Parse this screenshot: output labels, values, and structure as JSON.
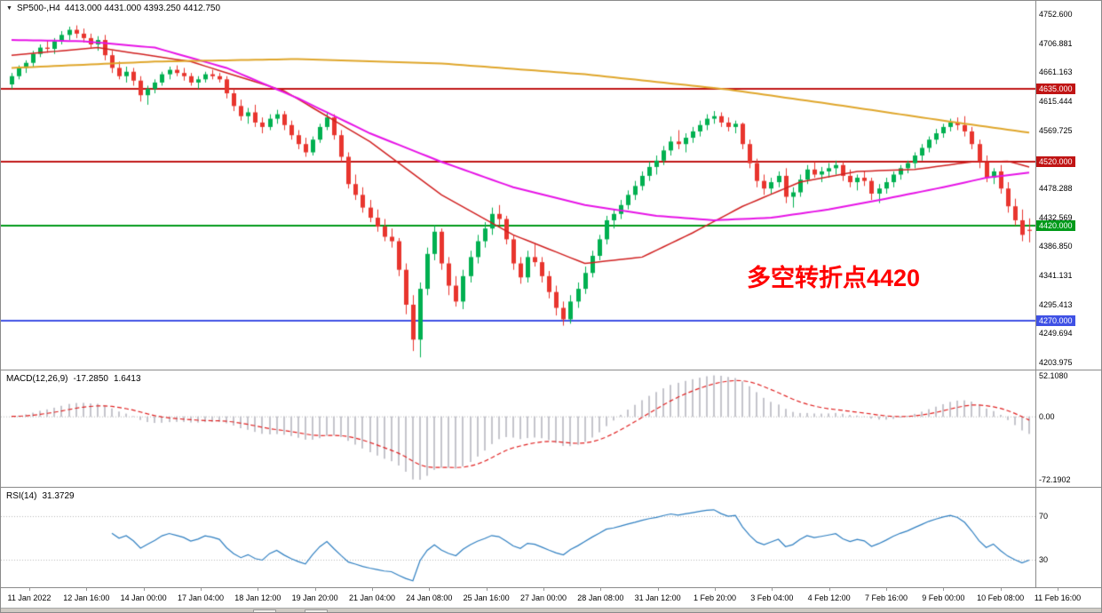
{
  "window": {
    "expander_icon": "▼",
    "symbol_period": "SP500-,H4",
    "ohlc_values": "4413.000 4431.000 4393.250 4412.750"
  },
  "chart_data": {
    "type": "candlestick",
    "symbol": "SP500-",
    "timeframe": "H4",
    "main_panel": {
      "ylim": [
        4192.8,
        4773.6
      ],
      "yticks": [
        "4752.600",
        "4706.881",
        "4661.163",
        "4615.444",
        "4569.725",
        "4478.288",
        "4432.569",
        "4386.850",
        "4341.131",
        "4295.413",
        "4249.694",
        "4203.975"
      ],
      "up_color": "#00b050",
      "down_color": "#e8352e",
      "hlines": [
        {
          "value": 4635.0,
          "label": "4635.000",
          "color": "#c01414"
        },
        {
          "value": 4520.0,
          "label": "4520.000",
          "color": "#c01414"
        },
        {
          "value": 4420.0,
          "label": "4420.000",
          "color": "#009a1a"
        },
        {
          "value": 4270.0,
          "label": "4270.000",
          "color": "#3f51e5"
        }
      ],
      "annotation": {
        "text": "多空转折点4420",
        "color": "#ff0000",
        "x": 840,
        "y": 290,
        "font_size": 27
      },
      "ma_lines": [
        {
          "name": "ma-fast-red",
          "color": "#d02020",
          "width": 1.5,
          "points": [
            [
              0,
              4688
            ],
            [
              12,
              4700
            ],
            [
              25,
              4678
            ],
            [
              38,
              4632
            ],
            [
              50,
              4552
            ],
            [
              60,
              4468
            ],
            [
              70,
              4405
            ],
            [
              80,
              4360
            ],
            [
              88,
              4370
            ],
            [
              95,
              4408
            ],
            [
              102,
              4450
            ],
            [
              110,
              4488
            ],
            [
              118,
              4505
            ],
            [
              126,
              4508
            ],
            [
              134,
              4520
            ],
            [
              139,
              4521
            ],
            [
              142,
              4512
            ]
          ]
        },
        {
          "name": "ma-mid-magenta",
          "color": "#e613e6",
          "width": 2,
          "points": [
            [
              0,
              4712
            ],
            [
              10,
              4710
            ],
            [
              20,
              4700
            ],
            [
              30,
              4668
            ],
            [
              40,
              4620
            ],
            [
              50,
              4565
            ],
            [
              60,
              4520
            ],
            [
              70,
              4480
            ],
            [
              80,
              4452
            ],
            [
              90,
              4435
            ],
            [
              98,
              4428
            ],
            [
              106,
              4432
            ],
            [
              114,
              4445
            ],
            [
              122,
              4462
            ],
            [
              130,
              4480
            ],
            [
              136,
              4495
            ],
            [
              142,
              4503
            ]
          ]
        },
        {
          "name": "ma-slow-orange",
          "color": "#dfa62b",
          "width": 2,
          "points": [
            [
              0,
              4668
            ],
            [
              20,
              4678
            ],
            [
              40,
              4682
            ],
            [
              60,
              4675
            ],
            [
              80,
              4658
            ],
            [
              100,
              4634
            ],
            [
              115,
              4610
            ],
            [
              130,
              4585
            ],
            [
              142,
              4566
            ]
          ]
        }
      ],
      "candles": [
        [
          4642,
          4660,
          4635,
          4655
        ],
        [
          4655,
          4672,
          4650,
          4668
        ],
        [
          4668,
          4680,
          4660,
          4676
        ],
        [
          4676,
          4695,
          4670,
          4690
        ],
        [
          4690,
          4705,
          4685,
          4700
        ],
        [
          4700,
          4712,
          4692,
          4698
        ],
        [
          4698,
          4715,
          4690,
          4710
        ],
        [
          4710,
          4726,
          4705,
          4720
        ],
        [
          4720,
          4733,
          4712,
          4728
        ],
        [
          4728,
          4735,
          4715,
          4722
        ],
        [
          4722,
          4730,
          4708,
          4715
        ],
        [
          4715,
          4722,
          4700,
          4705
        ],
        [
          4705,
          4718,
          4695,
          4712
        ],
        [
          4712,
          4720,
          4680,
          4688
        ],
        [
          4688,
          4695,
          4660,
          4668
        ],
        [
          4668,
          4678,
          4650,
          4655
        ],
        [
          4655,
          4670,
          4645,
          4662
        ],
        [
          4662,
          4668,
          4640,
          4648
        ],
        [
          4648,
          4655,
          4615,
          4625
        ],
        [
          4625,
          4640,
          4610,
          4635
        ],
        [
          4635,
          4650,
          4628,
          4645
        ],
        [
          4645,
          4662,
          4640,
          4658
        ],
        [
          4658,
          4670,
          4650,
          4665
        ],
        [
          4665,
          4672,
          4655,
          4660
        ],
        [
          4660,
          4668,
          4648,
          4655
        ],
        [
          4655,
          4660,
          4640,
          4645
        ],
        [
          4645,
          4655,
          4635,
          4650
        ],
        [
          4650,
          4662,
          4645,
          4658
        ],
        [
          4658,
          4665,
          4650,
          4655
        ],
        [
          4655,
          4660,
          4645,
          4650
        ],
        [
          4650,
          4655,
          4620,
          4628
        ],
        [
          4628,
          4635,
          4600,
          4608
        ],
        [
          4608,
          4618,
          4585,
          4592
        ],
        [
          4592,
          4605,
          4580,
          4598
        ],
        [
          4598,
          4610,
          4575,
          4582
        ],
        [
          4582,
          4590,
          4565,
          4575
        ],
        [
          4575,
          4595,
          4570,
          4588
        ],
        [
          4588,
          4602,
          4580,
          4595
        ],
        [
          4595,
          4600,
          4570,
          4578
        ],
        [
          4578,
          4585,
          4555,
          4562
        ],
        [
          4562,
          4570,
          4540,
          4548
        ],
        [
          4548,
          4558,
          4528,
          4535
        ],
        [
          4535,
          4560,
          4530,
          4555
        ],
        [
          4555,
          4580,
          4550,
          4575
        ],
        [
          4575,
          4598,
          4570,
          4590
        ],
        [
          4590,
          4595,
          4555,
          4562
        ],
        [
          4562,
          4570,
          4520,
          4528
        ],
        [
          4528,
          4535,
          4478,
          4485
        ],
        [
          4485,
          4500,
          4460,
          4468
        ],
        [
          4468,
          4480,
          4440,
          4448
        ],
        [
          4448,
          4460,
          4425,
          4432
        ],
        [
          4432,
          4445,
          4410,
          4418
        ],
        [
          4418,
          4430,
          4395,
          4402
        ],
        [
          4402,
          4415,
          4385,
          4395
        ],
        [
          4395,
          4400,
          4340,
          4350
        ],
        [
          4350,
          4360,
          4280,
          4295
        ],
        [
          4295,
          4310,
          4222,
          4240
        ],
        [
          4240,
          4330,
          4212,
          4320
        ],
        [
          4320,
          4385,
          4310,
          4375
        ],
        [
          4375,
          4420,
          4365,
          4410
        ],
        [
          4410,
          4415,
          4350,
          4360
        ],
        [
          4360,
          4370,
          4310,
          4325
        ],
        [
          4325,
          4340,
          4292,
          4300
        ],
        [
          4300,
          4350,
          4288,
          4340
        ],
        [
          4340,
          4380,
          4330,
          4370
        ],
        [
          4370,
          4405,
          4360,
          4395
        ],
        [
          4395,
          4425,
          4385,
          4415
        ],
        [
          4415,
          4448,
          4405,
          4438
        ],
        [
          4438,
          4452,
          4420,
          4430
        ],
        [
          4430,
          4435,
          4390,
          4398
        ],
        [
          4398,
          4405,
          4350,
          4360
        ],
        [
          4360,
          4370,
          4328,
          4338
        ],
        [
          4338,
          4380,
          4330,
          4370
        ],
        [
          4370,
          4390,
          4355,
          4362
        ],
        [
          4362,
          4370,
          4330,
          4340
        ],
        [
          4340,
          4348,
          4305,
          4315
        ],
        [
          4315,
          4325,
          4278,
          4290
        ],
        [
          4290,
          4300,
          4262,
          4272
        ],
        [
          4272,
          4310,
          4265,
          4300
        ],
        [
          4300,
          4330,
          4290,
          4320
        ],
        [
          4320,
          4355,
          4312,
          4345
        ],
        [
          4345,
          4380,
          4338,
          4372
        ],
        [
          4372,
          4405,
          4365,
          4398
        ],
        [
          4398,
          4435,
          4390,
          4428
        ],
        [
          4428,
          4445,
          4415,
          4438
        ],
        [
          4438,
          4460,
          4430,
          4452
        ],
        [
          4452,
          4475,
          4445,
          4468
        ],
        [
          4468,
          4490,
          4460,
          4482
        ],
        [
          4482,
          4505,
          4475,
          4498
        ],
        [
          4498,
          4520,
          4490,
          4512
        ],
        [
          4512,
          4530,
          4500,
          4522
        ],
        [
          4522,
          4545,
          4515,
          4538
        ],
        [
          4538,
          4560,
          4530,
          4552
        ],
        [
          4552,
          4570,
          4540,
          4548
        ],
        [
          4548,
          4565,
          4535,
          4558
        ],
        [
          4558,
          4575,
          4550,
          4568
        ],
        [
          4568,
          4585,
          4560,
          4578
        ],
        [
          4578,
          4595,
          4570,
          4588
        ],
        [
          4588,
          4600,
          4580,
          4592
        ],
        [
          4592,
          4598,
          4575,
          4582
        ],
        [
          4582,
          4590,
          4568,
          4575
        ],
        [
          4575,
          4585,
          4565,
          4580
        ],
        [
          4580,
          4582,
          4540,
          4548
        ],
        [
          4548,
          4555,
          4510,
          4518
        ],
        [
          4518,
          4525,
          4480,
          4490
        ],
        [
          4490,
          4500,
          4468,
          4478
        ],
        [
          4478,
          4495,
          4470,
          4488
        ],
        [
          4488,
          4505,
          4480,
          4498
        ],
        [
          4498,
          4510,
          4455,
          4465
        ],
        [
          4465,
          4480,
          4448,
          4472
        ],
        [
          4472,
          4500,
          4465,
          4492
        ],
        [
          4492,
          4515,
          4485,
          4508
        ],
        [
          4508,
          4520,
          4495,
          4500
        ],
        [
          4500,
          4512,
          4488,
          4505
        ],
        [
          4505,
          4518,
          4495,
          4510
        ],
        [
          4510,
          4522,
          4500,
          4515
        ],
        [
          4515,
          4520,
          4490,
          4498
        ],
        [
          4498,
          4508,
          4480,
          4488
        ],
        [
          4488,
          4500,
          4475,
          4495
        ],
        [
          4495,
          4505,
          4482,
          4490
        ],
        [
          4490,
          4495,
          4460,
          4470
        ],
        [
          4470,
          4485,
          4455,
          4478
        ],
        [
          4478,
          4495,
          4470,
          4488
        ],
        [
          4488,
          4505,
          4480,
          4500
        ],
        [
          4500,
          4515,
          4492,
          4510
        ],
        [
          4510,
          4522,
          4502,
          4518
        ],
        [
          4518,
          4535,
          4510,
          4530
        ],
        [
          4530,
          4548,
          4522,
          4542
        ],
        [
          4542,
          4560,
          4535,
          4555
        ],
        [
          4555,
          4572,
          4548,
          4565
        ],
        [
          4565,
          4580,
          4558,
          4575
        ],
        [
          4575,
          4588,
          4568,
          4582
        ],
        [
          4582,
          4590,
          4570,
          4578
        ],
        [
          4578,
          4592,
          4560,
          4568
        ],
        [
          4568,
          4575,
          4540,
          4548
        ],
        [
          4548,
          4555,
          4510,
          4520
        ],
        [
          4520,
          4530,
          4488,
          4495
        ],
        [
          4495,
          4510,
          4485,
          4505
        ],
        [
          4505,
          4515,
          4470,
          4478
        ],
        [
          4478,
          4488,
          4440,
          4450
        ],
        [
          4450,
          4462,
          4420,
          4428
        ],
        [
          4428,
          4445,
          4395,
          4405
        ],
        [
          4413,
          4431,
          4393.25,
          4412.75
        ]
      ]
    },
    "macd_panel": {
      "name": "MACD(12,26,9)",
      "value_main": "-17.2850",
      "value_signal": "1.6413",
      "params": {
        "fast": 12,
        "slow": 26,
        "signal": 9
      },
      "ytick_labels": [
        "52.1080",
        "0.00",
        "-72.1902"
      ],
      "histogram_color": "#c4c4cc",
      "signal_color": "#e02222",
      "zero_color": "#b8b8b8"
    },
    "rsi_panel": {
      "name": "RSI(14)",
      "value": "31.3729",
      "period": 14,
      "ylim": [
        4.7,
        96.1
      ],
      "levels": [
        {
          "value": 70,
          "label": "70"
        },
        {
          "value": 30,
          "label": "30"
        }
      ],
      "line_color": "#2f7fc1",
      "level_color": "#b8b8b8"
    },
    "x_axis": {
      "labels": [
        "11 Jan 2022",
        "12 Jan 16:00",
        "14 Jan 00:00",
        "17 Jan 04:00",
        "18 Jan 12:00",
        "19 Jan 20:00",
        "21 Jan 04:00",
        "24 Jan 08:00",
        "25 Jan 16:00",
        "27 Jan 00:00",
        "28 Jan 08:00",
        "31 Jan 12:00",
        "1 Feb 20:00",
        "3 Feb 04:00",
        "4 Feb 12:00",
        "7 Feb 16:00",
        "9 Feb 00:00",
        "10 Feb 08:00",
        "11 Feb 16:00"
      ]
    }
  }
}
